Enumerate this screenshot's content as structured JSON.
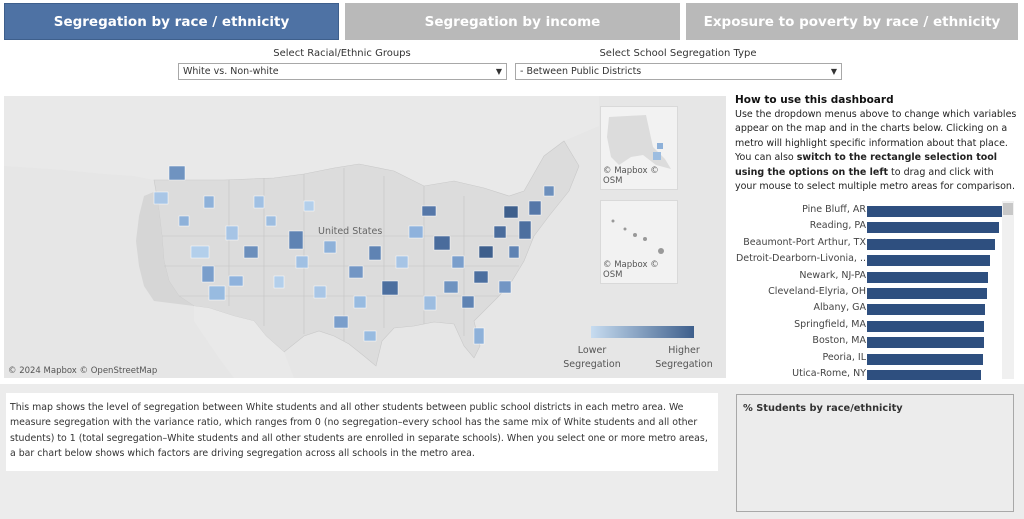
{
  "tabs": [
    {
      "label": "Segregation by race / ethnicity",
      "active": true
    },
    {
      "label": "Segregation by income",
      "active": false
    },
    {
      "label": "Exposure to poverty by race / ethnicity",
      "active": false
    }
  ],
  "filters": {
    "group": {
      "label": "Select Racial/Ethnic Groups",
      "value": "White vs. Non-white"
    },
    "type": {
      "label": "Select School Segregation Type",
      "value": "- Between Public Districts"
    }
  },
  "map": {
    "country_label": "United States",
    "credit_main": "© 2024 Mapbox  © OpenStreetMap",
    "inset_credit_1": "© Mapbox  © OSM",
    "inset_credit_2": "© Mapbox  © OSM",
    "legend": {
      "low": "Lower Segregation",
      "high": "Higher Segregation",
      "low_color": "#c7dcf0",
      "high_color": "#3e5f8c"
    }
  },
  "howto": {
    "title": "How to use this dashboard",
    "text_1": "Use the dropdown menus above to change which variables appear on the map and in the charts below. Clicking on a metro will highlight specific information about that place. You can also ",
    "bold": "switch to the rectangle selection tool using the options on the left",
    "text_2": " to drag and click with your mouse to select multiple metro areas for comparison."
  },
  "chart_data": {
    "type": "bar",
    "categories": [
      "Pine Bluff, AR",
      "Reading, PA",
      "Beaumont-Port Arthur, TX",
      "Detroit-Dearborn-Livonia, ..",
      "Newark, NJ-PA",
      "Cleveland-Elyria, OH",
      "Albany, GA",
      "Springfield, MA",
      "Boston, MA",
      "Peoria, IL",
      "Utica-Rome, NY"
    ],
    "values": [
      0.97,
      0.95,
      0.92,
      0.88,
      0.87,
      0.86,
      0.85,
      0.84,
      0.84,
      0.83,
      0.82
    ],
    "xlim": [
      0,
      1
    ],
    "bar_color": "#2e4f7f"
  },
  "description": "This map shows the level of segregation between White students and all other students between public school districts in each metro area. We measure segregation with the variance ratio, which ranges from 0 (no segregation–every school has the same mix of White students and all other students) to 1 (total segregation–White students and all other students are enrolled in separate schools). When you select one or more metro areas, a bar chart below shows which factors are driving segregation across all schools in the metro area.",
  "pct_panel": {
    "title": "% Students by race/ethnicity"
  }
}
